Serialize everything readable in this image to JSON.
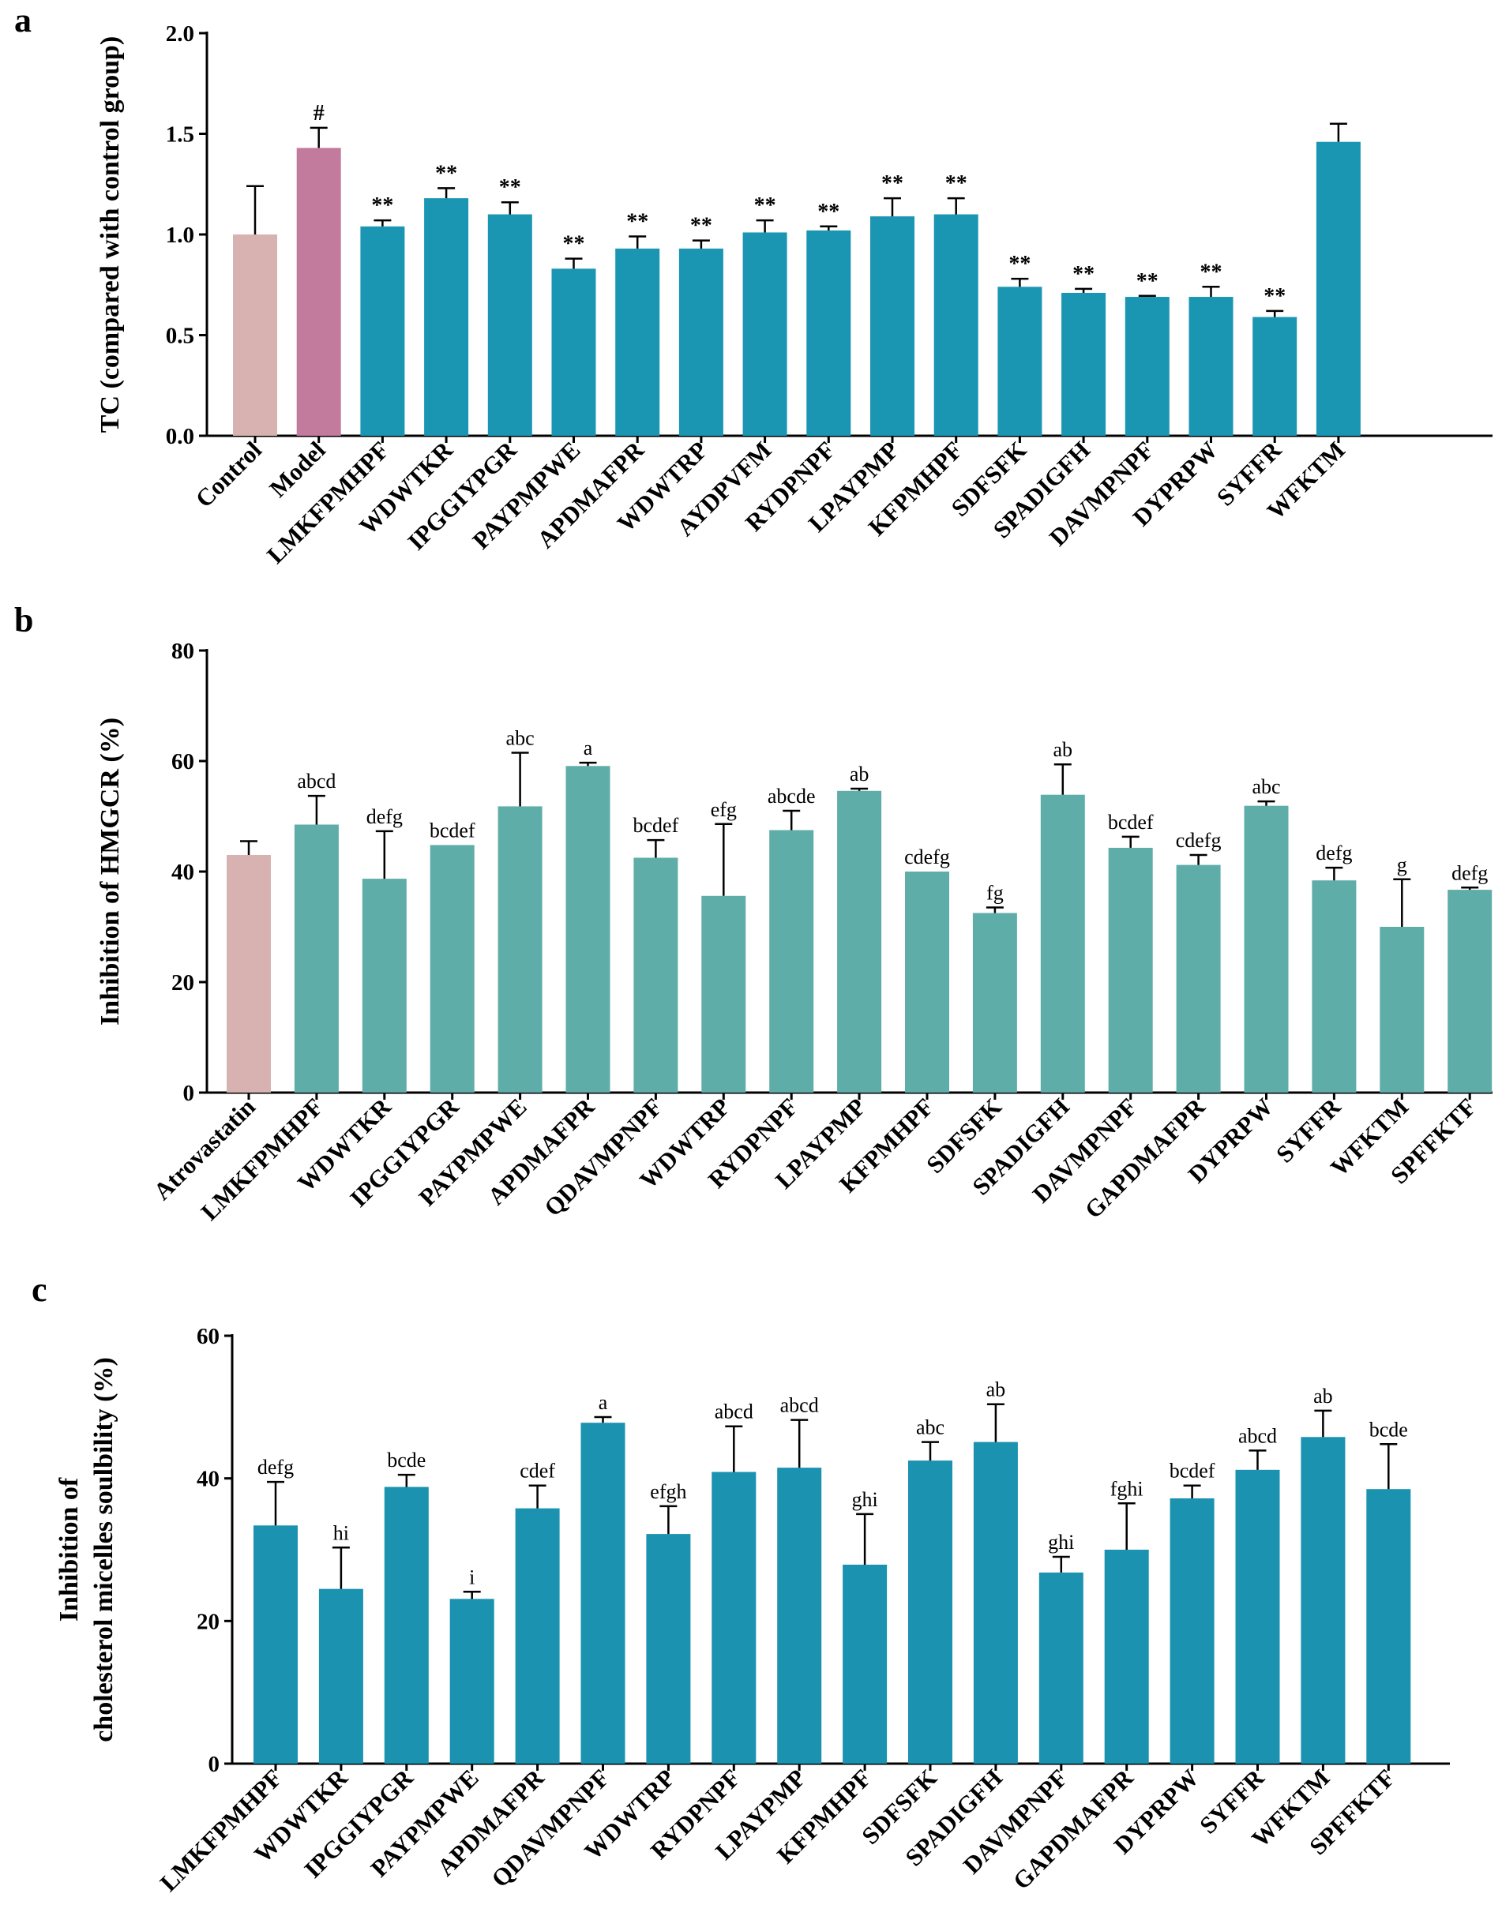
{
  "chart_data": [
    {
      "panel": "a",
      "type": "bar",
      "ylabel": "TC (compared with control group)",
      "ylim": [
        0,
        2.0
      ],
      "yticks": [
        "0.0",
        "0.5",
        "1.0",
        "1.5",
        "2.0"
      ],
      "categories": [
        "Control",
        "Model",
        "LMKFPMHPF",
        "WDWTKR",
        "IPGGIYPGR",
        "PAYPMPWE",
        "APDMAFPR",
        "WDWTRP",
        "AYDPVFM",
        "RYDPNPF",
        "LPAYPMP",
        "KFPMHPF",
        "SDFSFK",
        "SPADIGFH",
        "DAVMPNPF",
        "DYPRPW",
        "SYFFR",
        "WFKTM"
      ],
      "values": [
        1.0,
        1.43,
        1.04,
        1.18,
        1.1,
        0.83,
        0.93,
        0.93,
        1.01,
        1.02,
        1.09,
        1.1,
        0.74,
        0.71,
        0.69,
        0.69,
        0.59,
        1.46
      ],
      "errors": [
        0.24,
        0.1,
        0.03,
        0.05,
        0.06,
        0.05,
        0.06,
        0.04,
        0.06,
        0.02,
        0.09,
        0.08,
        0.04,
        0.02,
        0.005,
        0.05,
        0.03,
        0.09
      ],
      "annotations": [
        "",
        "#",
        "**",
        "**",
        "**",
        "**",
        "**",
        "**",
        "**",
        "**",
        "**",
        "**",
        "**",
        "**",
        "**",
        "**",
        "**",
        ""
      ],
      "colors": [
        "#d8b1b1",
        "#c27b9c",
        "#1a96b3",
        "#1a96b3",
        "#1a96b3",
        "#1a96b3",
        "#1a96b3",
        "#1a96b3",
        "#1a96b3",
        "#1a96b3",
        "#1a96b3",
        "#1a96b3",
        "#1a96b3",
        "#1a96b3",
        "#1a96b3",
        "#1a96b3",
        "#1a96b3",
        "#1a96b3"
      ]
    },
    {
      "panel": "b",
      "type": "bar",
      "ylabel": "Inhibition of HMGCR (%)",
      "ylim": [
        0,
        80
      ],
      "yticks": [
        "0",
        "20",
        "40",
        "60",
        "80"
      ],
      "categories": [
        "Atrovastatin",
        "LMKFPMHPF",
        "WDWTKR",
        "IPGGIYPGR",
        "PAYPMPWE",
        "APDMAFPR",
        "QDAVMPNPF",
        "WDWTRP",
        "RYDPNPF",
        "LPAYPMP",
        "KFPMHPF",
        "SDFSFK",
        "SPADIGFH",
        "DAVMPNPF",
        "GAPDMAFPR",
        "DYPRPW",
        "SYFFR",
        "WFKTM",
        "SPFFKTF"
      ],
      "values": [
        43,
        48.5,
        38.7,
        44.8,
        51.8,
        59.1,
        42.5,
        35.6,
        47.5,
        54.6,
        40.0,
        32.5,
        53.9,
        44.3,
        41.2,
        51.9,
        38.4,
        30.0,
        36.7
      ],
      "errors": [
        2.5,
        5.2,
        8.6,
        0,
        9.7,
        0.6,
        3.2,
        13.0,
        3.5,
        0.4,
        0,
        1.0,
        5.5,
        2.0,
        1.8,
        0.8,
        2.3,
        8.6,
        0.4
      ],
      "annotations": [
        "",
        "abcd",
        "defg",
        "bcdef",
        "abc",
        "a",
        "bcdef",
        "efg",
        "abcde",
        "ab",
        "cdefg",
        "fg",
        "ab",
        "bcdef",
        "cdefg",
        "abc",
        "defg",
        "g",
        "defg"
      ],
      "colors": [
        "#d8b1b1",
        "#5fada9",
        "#5fada9",
        "#5fada9",
        "#5fada9",
        "#5fada9",
        "#5fada9",
        "#5fada9",
        "#5fada9",
        "#5fada9",
        "#5fada9",
        "#5fada9",
        "#5fada9",
        "#5fada9",
        "#5fada9",
        "#5fada9",
        "#5fada9",
        "#5fada9",
        "#5fada9"
      ]
    },
    {
      "panel": "c",
      "type": "bar",
      "ylabel_line1": "Inhibition of",
      "ylabel_line2": "cholesterol micelles soulbility (%)",
      "ylim": [
        0,
        60
      ],
      "yticks": [
        "0",
        "20",
        "40",
        "60"
      ],
      "categories": [
        "LMKFPMHPF",
        "WDWTKR",
        "IPGGIYPGR",
        "PAYPMPWE",
        "APDMAFPR",
        "QDAVMPNPF",
        "WDWTRP",
        "RYDPNPF",
        "LPAYPMP",
        "KFPMHPF",
        "SDFSFK",
        "SPADIGFH",
        "DAVMPNPF",
        "GAPDMAFPR",
        "DYPRPW",
        "SYFFR",
        "WFKTM",
        "SPFFKTF"
      ],
      "values": [
        33.4,
        24.5,
        38.8,
        23.1,
        35.8,
        47.8,
        32.2,
        40.9,
        41.5,
        27.9,
        42.5,
        45.1,
        26.8,
        30.0,
        37.2,
        41.2,
        45.8,
        38.5
      ],
      "errors": [
        6.1,
        5.8,
        1.7,
        1.0,
        3.2,
        0.8,
        3.9,
        6.4,
        6.7,
        7.1,
        2.6,
        5.3,
        2.2,
        6.5,
        1.8,
        2.7,
        3.7,
        6.3
      ],
      "annotations": [
        "defg",
        "hi",
        "bcde",
        "i",
        "cdef",
        "a",
        "efgh",
        "abcd",
        "abcd",
        "ghi",
        "abc",
        "ab",
        "ghi",
        "fghi",
        "bcdef",
        "abcd",
        "ab",
        "bcde"
      ],
      "colors": [
        "#1a92b0"
      ]
    }
  ]
}
